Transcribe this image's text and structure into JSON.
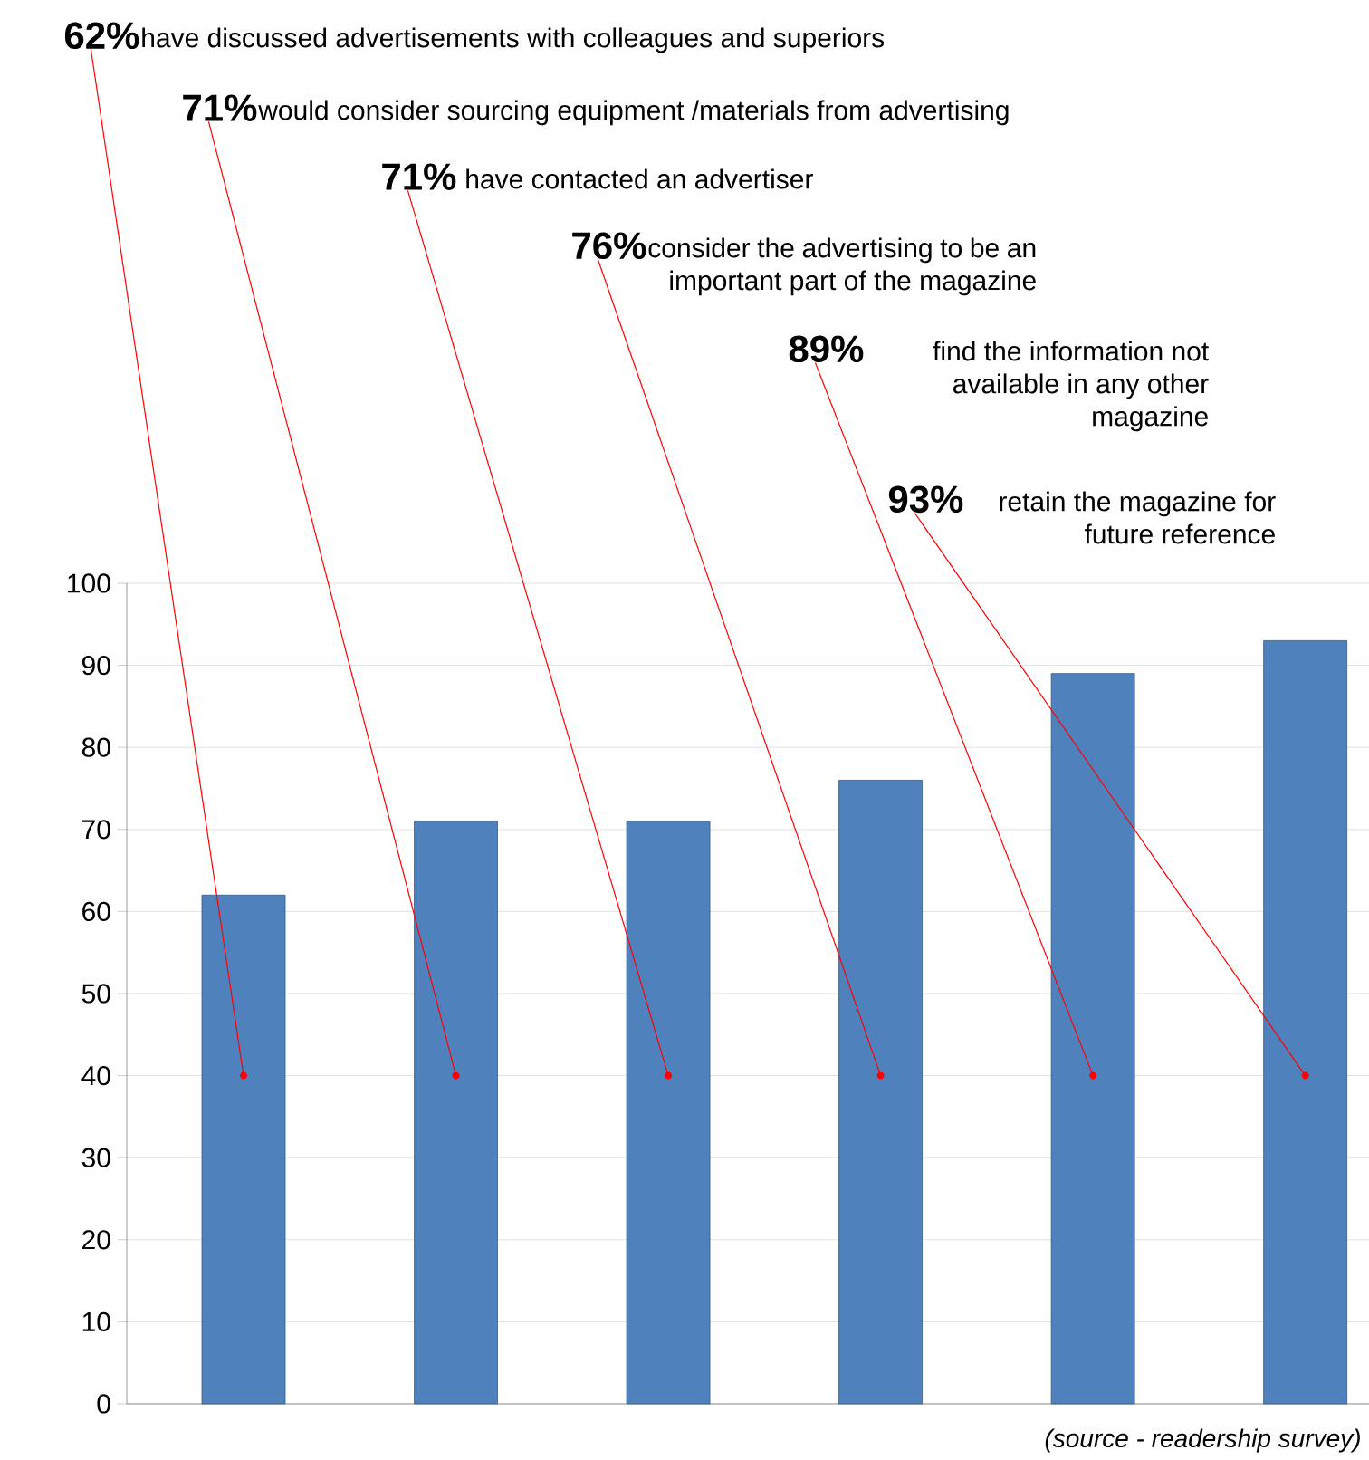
{
  "chart_data": {
    "type": "bar",
    "categories": [
      null,
      null,
      null,
      null,
      null,
      null
    ],
    "values": [
      62,
      71,
      71,
      76,
      89,
      93
    ],
    "value_labels": [
      "62%",
      "71%",
      "71%",
      "76%",
      "89%",
      "93%"
    ],
    "color": "#4f81bd",
    "ylim": [
      0,
      100
    ],
    "yticks": [
      0,
      10,
      20,
      30,
      40,
      50,
      60,
      70,
      80,
      90,
      100
    ],
    "grid": "y",
    "annotations": [
      "have discussed advertisements with colleagues and superiors",
      "would consider sourcing equipment /materials from advertising",
      "have contacted an advertiser",
      "consider the advertising to be an important part of the magazine",
      "find the information not available in any other magazine",
      "retain the magazine for future reference",
      "(source - readership survey)"
    ]
  }
}
